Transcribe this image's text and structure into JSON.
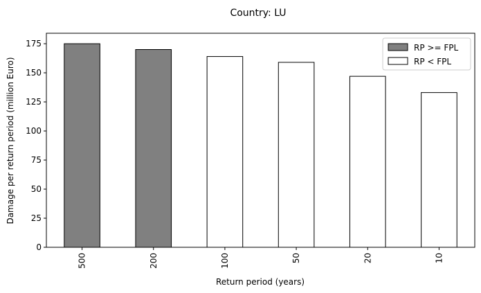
{
  "chart_data": {
    "type": "bar",
    "title": "Country: LU",
    "xlabel": "Return period (years)",
    "ylabel": "Damage per return period (million Euro)",
    "categories": [
      "500",
      "200",
      "100",
      "50",
      "20",
      "10"
    ],
    "values": [
      175,
      170,
      164,
      159,
      147,
      133
    ],
    "fills": [
      "#808080",
      "#808080",
      "#ffffff",
      "#ffffff",
      "#ffffff",
      "#ffffff"
    ],
    "ylim": [
      0,
      184
    ],
    "yticks": [
      0,
      25,
      50,
      75,
      100,
      125,
      150,
      175
    ],
    "grid": false,
    "legend": {
      "placement": "top-right",
      "entries": [
        {
          "label": "RP >= FPL",
          "color": "#808080"
        },
        {
          "label": "RP < FPL",
          "color": "#ffffff"
        }
      ]
    }
  }
}
